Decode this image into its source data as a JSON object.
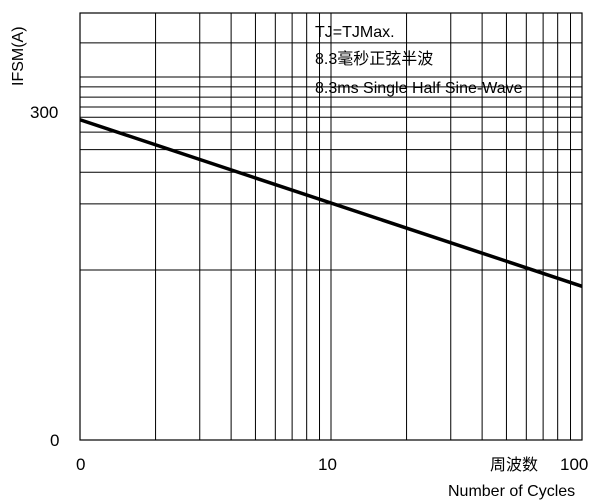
{
  "chart_data": {
    "type": "line",
    "title": "",
    "ylabel": "IFSM(A)",
    "xlabel": "Number of Cycles",
    "xlabel_cn": "周波数",
    "x_scale": "log",
    "x": [
      1,
      100
    ],
    "x_tick_labels": [
      "0",
      "10",
      "100"
    ],
    "y_tick_labels": [
      "0",
      "300"
    ],
    "ylim": [
      0,
      400
    ],
    "grid": true,
    "series": [
      {
        "values": [
          300,
          144
        ]
      }
    ],
    "annotations": [
      "TJ=TJMax.",
      "8.3毫秒正弦半波",
      "8.3ms Single Half Sine-Wave"
    ]
  }
}
